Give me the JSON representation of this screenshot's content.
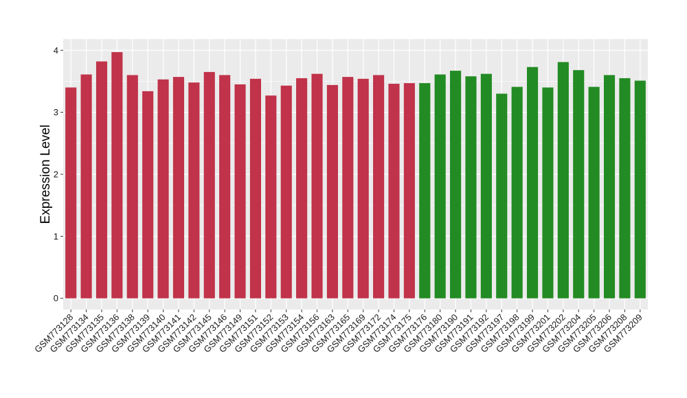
{
  "chart_data": {
    "type": "bar",
    "title": "",
    "xlabel": "",
    "ylabel": "Expression Level",
    "ylim": [
      -0.18,
      4.18
    ],
    "yticks": [
      0,
      1,
      2,
      3,
      4
    ],
    "grid": true,
    "legend": "none",
    "categories": [
      "GSM773128",
      "GSM773134",
      "GSM773135",
      "GSM773136",
      "GSM773138",
      "GSM773139",
      "GSM773140",
      "GSM773141",
      "GSM773142",
      "GSM773145",
      "GSM773146",
      "GSM773149",
      "GSM773151",
      "GSM773152",
      "GSM773153",
      "GSM773154",
      "GSM773156",
      "GSM773163",
      "GSM773165",
      "GSM773169",
      "GSM773172",
      "GSM773174",
      "GSM773175",
      "GSM773176",
      "GSM773180",
      "GSM773190",
      "GSM773191",
      "GSM773192",
      "GSM773197",
      "GSM773198",
      "GSM773199",
      "GSM773201",
      "GSM773202",
      "GSM773204",
      "GSM773205",
      "GSM773206",
      "GSM773208",
      "GSM773209"
    ],
    "values": [
      3.4,
      3.61,
      3.82,
      3.97,
      3.6,
      3.34,
      3.53,
      3.57,
      3.48,
      3.65,
      3.6,
      3.45,
      3.54,
      3.27,
      3.43,
      3.55,
      3.62,
      3.44,
      3.57,
      3.54,
      3.6,
      3.46,
      3.47,
      3.47,
      3.61,
      3.67,
      3.58,
      3.62,
      3.3,
      3.41,
      3.73,
      3.4,
      3.81,
      3.68,
      3.41,
      3.6,
      3.55,
      3.51
    ],
    "group": [
      "red",
      "red",
      "red",
      "red",
      "red",
      "red",
      "red",
      "red",
      "red",
      "red",
      "red",
      "red",
      "red",
      "red",
      "red",
      "red",
      "red",
      "red",
      "red",
      "red",
      "red",
      "red",
      "red",
      "green",
      "green",
      "green",
      "green",
      "green",
      "green",
      "green",
      "green",
      "green",
      "green",
      "green",
      "green",
      "green",
      "green",
      "green"
    ],
    "colors": {
      "red": "#c0334a",
      "green": "#238b23",
      "panel": "#ebebeb",
      "grid": "#ffffff"
    }
  }
}
